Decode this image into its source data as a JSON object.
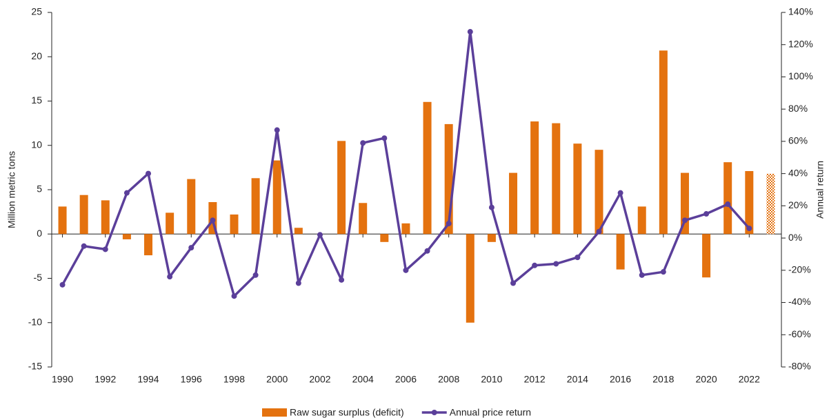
{
  "chart_data": {
    "type": "bar_line",
    "categories": [
      "1990",
      null,
      "1992",
      null,
      "1994",
      null,
      "1996",
      null,
      "1998",
      null,
      "2000",
      null,
      "2002",
      null,
      "2004",
      null,
      "2006",
      null,
      "2008",
      null,
      "2010",
      null,
      "2012",
      null,
      "2014",
      null,
      "2016",
      null,
      "2018",
      null,
      "2020",
      null,
      "2022",
      null
    ],
    "ylabel": "Million metric tons",
    "y2label": "Annual return",
    "ylim": [
      -15,
      25
    ],
    "yticks": [
      -15,
      -10,
      -5,
      0,
      5,
      10,
      15,
      20,
      25
    ],
    "y2lim": [
      -80,
      140
    ],
    "y2ticks": [
      {
        "value": -80,
        "label": "-80%"
      },
      {
        "value": -60,
        "label": "-60%"
      },
      {
        "value": -40,
        "label": "-40%"
      },
      {
        "value": -20,
        "label": "-20%"
      },
      {
        "value": 0,
        "label": "0%"
      },
      {
        "value": 20,
        "label": "20%"
      },
      {
        "value": 40,
        "label": "40%"
      },
      {
        "value": 60,
        "label": "60%"
      },
      {
        "value": 80,
        "label": "80%"
      },
      {
        "value": 100,
        "label": "100%"
      },
      {
        "value": 120,
        "label": "120%"
      },
      {
        "value": 140,
        "label": "140%"
      }
    ],
    "hatch_last": true,
    "series": [
      {
        "name": "Raw sugar surplus (deficit)",
        "type": "bar",
        "color": "#e4720f",
        "values": [
          3.1,
          4.4,
          3.8,
          -0.6,
          -2.4,
          2.4,
          6.2,
          3.6,
          2.2,
          6.3,
          8.3,
          0.7,
          0,
          10.5,
          3.5,
          -0.9,
          1.2,
          14.9,
          12.4,
          -10.0,
          -0.9,
          6.9,
          12.7,
          12.5,
          10.2,
          9.5,
          -4.0,
          3.1,
          20.7,
          6.9,
          -4.9,
          8.1,
          7.1,
          6.8
        ]
      },
      {
        "name": "Annual price return",
        "type": "line",
        "axis": "y2",
        "color": "#5b3f9a",
        "values": [
          -29,
          -5,
          -7,
          28,
          40,
          -24,
          -6,
          11,
          -36,
          -23,
          67,
          -28,
          2,
          -26,
          59,
          62,
          -20,
          -8,
          9,
          128,
          19,
          -28,
          -17,
          -16,
          -12,
          4,
          28,
          -23,
          -21,
          11,
          15,
          21,
          6,
          null
        ]
      }
    ]
  }
}
